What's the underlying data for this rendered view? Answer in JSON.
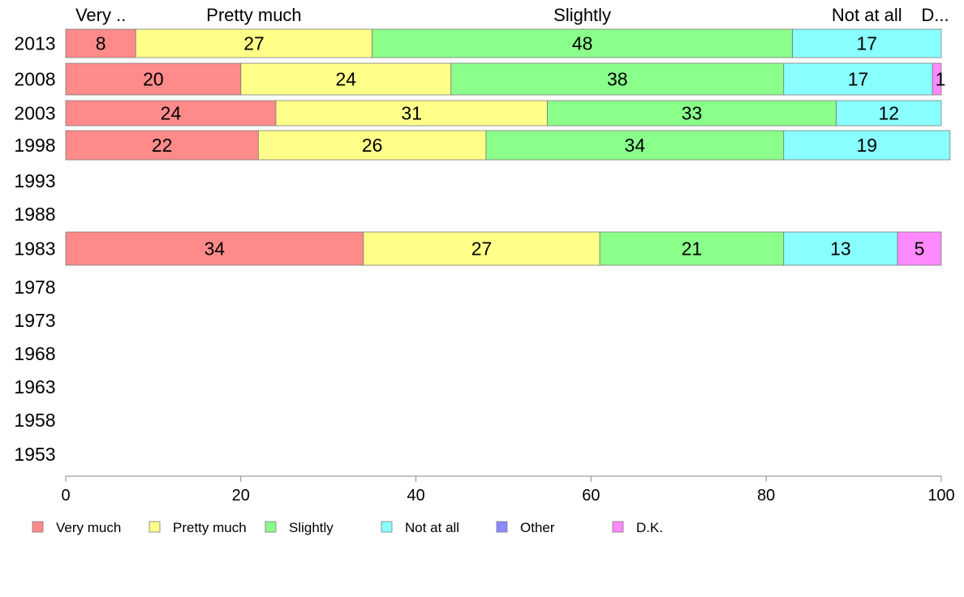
{
  "chart_data": {
    "type": "bar",
    "orientation": "horizontal",
    "stacked": true,
    "categories": [
      "2013",
      "2008",
      "2003",
      "1998",
      "1993",
      "1988",
      "1983",
      "1978",
      "1973",
      "1968",
      "1963",
      "1958",
      "1953"
    ],
    "top_labels": [
      "Very ..",
      "Pretty much",
      "Slightly",
      "Not at all",
      "D..."
    ],
    "series": [
      {
        "name": "Very much",
        "color": "#ff8a8a",
        "values": [
          8,
          20,
          24,
          22,
          null,
          null,
          34,
          null,
          null,
          null,
          null,
          null,
          null
        ]
      },
      {
        "name": "Pretty much",
        "color": "#ffff8a",
        "values": [
          27,
          24,
          31,
          26,
          null,
          null,
          27,
          null,
          null,
          null,
          null,
          null,
          null
        ]
      },
      {
        "name": "Slightly",
        "color": "#8aff8a",
        "values": [
          48,
          38,
          33,
          34,
          null,
          null,
          21,
          null,
          null,
          null,
          null,
          null,
          null
        ]
      },
      {
        "name": "Not at all",
        "color": "#8affff",
        "values": [
          17,
          17,
          12,
          19,
          null,
          null,
          13,
          null,
          null,
          null,
          null,
          null,
          null
        ]
      },
      {
        "name": "Other",
        "color": "#8a8aff",
        "values": [
          0,
          0,
          0,
          0,
          null,
          null,
          0,
          null,
          null,
          null,
          null,
          null,
          null
        ]
      },
      {
        "name": "D.K.",
        "color": "#ff8aff",
        "values": [
          0,
          1,
          0,
          0,
          null,
          null,
          5,
          null,
          null,
          null,
          null,
          null,
          null
        ]
      }
    ],
    "bar_labels": [
      [
        "8",
        "27",
        "48",
        "17",
        "",
        ""
      ],
      [
        "20",
        "24",
        "38",
        "17",
        "",
        "1"
      ],
      [
        "24",
        "31",
        "33",
        "12",
        "",
        ""
      ],
      [
        "22",
        "26",
        "34",
        "19",
        "",
        ""
      ],
      [],
      [],
      [
        "34",
        "27",
        "21",
        "13",
        "",
        "5"
      ],
      [],
      [],
      [],
      [],
      [],
      []
    ],
    "xlim": [
      0,
      100
    ],
    "xticks": [
      0,
      20,
      40,
      60,
      80,
      100
    ],
    "xtick_labels": [
      "0",
      "20",
      "40",
      "60",
      "80",
      "100"
    ],
    "legend_position": "bottom",
    "grid": false
  }
}
